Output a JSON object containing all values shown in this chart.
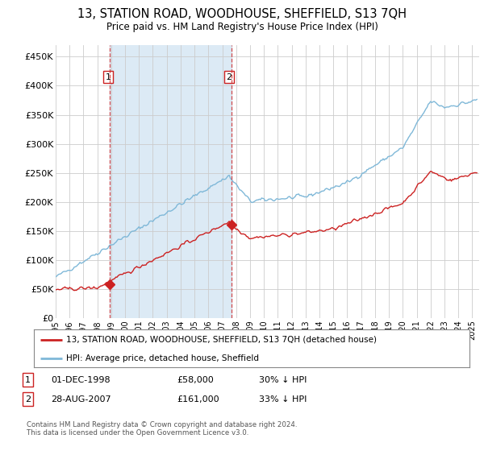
{
  "title": "13, STATION ROAD, WOODHOUSE, SHEFFIELD, S13 7QH",
  "subtitle": "Price paid vs. HM Land Registry's House Price Index (HPI)",
  "ylabel_ticks": [
    "£0",
    "£50K",
    "£100K",
    "£150K",
    "£200K",
    "£250K",
    "£300K",
    "£350K",
    "£400K",
    "£450K"
  ],
  "ylim": [
    0,
    470000
  ],
  "xlim_start": 1995.0,
  "xlim_end": 2025.5,
  "xtick_years": [
    1995,
    1996,
    1997,
    1998,
    1999,
    2000,
    2001,
    2002,
    2003,
    2004,
    2005,
    2006,
    2007,
    2008,
    2009,
    2010,
    2011,
    2012,
    2013,
    2014,
    2015,
    2016,
    2017,
    2018,
    2019,
    2020,
    2021,
    2022,
    2023,
    2024,
    2025
  ],
  "hpi_color": "#7fb8d8",
  "price_color": "#cc2222",
  "purchase_1": {
    "year": 1998.917,
    "price": 58000
  },
  "purchase_2": {
    "year": 2007.647,
    "price": 161000
  },
  "legend_line1": "13, STATION ROAD, WOODHOUSE, SHEFFIELD, S13 7QH (detached house)",
  "legend_line2": "HPI: Average price, detached house, Sheffield",
  "table_row1": [
    "1",
    "01-DEC-1998",
    "£58,000",
    "30% ↓ HPI"
  ],
  "table_row2": [
    "2",
    "28-AUG-2007",
    "£161,000",
    "33% ↓ HPI"
  ],
  "footnote": "Contains HM Land Registry data © Crown copyright and database right 2024.\nThis data is licensed under the Open Government Licence v3.0.",
  "background_color": "#ffffff",
  "grid_color": "#cccccc",
  "shade_color": "#dceaf5"
}
